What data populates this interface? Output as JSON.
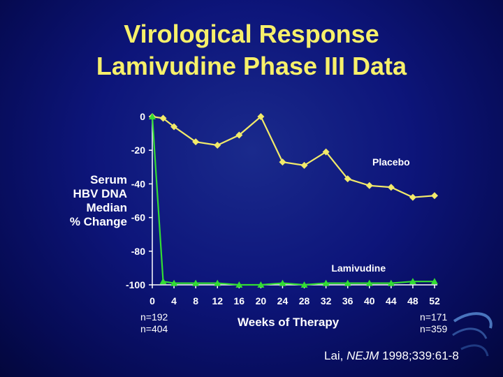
{
  "slide": {
    "title_line1": "Virological Response",
    "title_line2": "Lamivudine Phase III Data",
    "ylabel_lines": [
      "Serum",
      "HBV DNA",
      "Median",
      "% Change"
    ],
    "n_left_top": "n=192",
    "n_left_bottom": "n=404",
    "n_right_top": "n=171",
    "n_right_bottom": "n=359",
    "citation_author": "Lai, ",
    "citation_journal": "NEJM",
    "citation_rest": " 1998;339:61-8"
  },
  "colors": {
    "title": "#f7f06a",
    "placebo": "#f2ea6a",
    "lamivudine": "#33dd33",
    "axis": "#ffffff",
    "text": "#ffffff"
  },
  "chart_data": {
    "type": "line",
    "xlabel": "Weeks of Therapy",
    "ylabel": "Serum HBV DNA Median % Change",
    "x_ticks": [
      0,
      4,
      8,
      12,
      16,
      20,
      24,
      28,
      32,
      36,
      40,
      44,
      48,
      52
    ],
    "y_ticks": [
      0,
      -20,
      -40,
      -60,
      -80,
      -100
    ],
    "xlim": [
      0,
      52
    ],
    "ylim": [
      -100,
      0
    ],
    "grid": false,
    "series": [
      {
        "name": "Placebo",
        "marker": "diamond",
        "x": [
          0,
          2,
          4,
          8,
          12,
          16,
          20,
          24,
          28,
          32,
          36,
          40,
          44,
          48,
          52
        ],
        "y": [
          0,
          -1,
          -6,
          -15,
          -17,
          -11,
          0,
          -27,
          -29,
          -21,
          -37,
          -41,
          -42,
          -48,
          -47
        ]
      },
      {
        "name": "Lamivudine",
        "marker": "triangle",
        "x": [
          0,
          2,
          4,
          8,
          12,
          16,
          20,
          24,
          28,
          32,
          36,
          40,
          44,
          48,
          52
        ],
        "y": [
          0,
          -98,
          -99,
          -99,
          -99,
          -100,
          -100,
          -99,
          -100,
          -99,
          -99,
          -99,
          -99,
          -98,
          -98
        ]
      }
    ]
  }
}
